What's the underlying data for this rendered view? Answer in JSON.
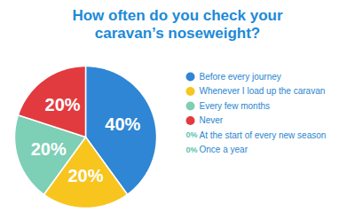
{
  "chart_data": {
    "type": "pie",
    "title": "How often do you check your caravan’s noseweight?",
    "categories": [
      "Before every journey",
      "Whenever I load up the caravan",
      "Every few months",
      "Never",
      "At the start of every new season",
      "Once a year"
    ],
    "values": [
      40,
      20,
      20,
      20,
      0,
      0
    ],
    "value_labels": [
      "40%",
      "20%",
      "20%",
      "20%",
      "0%",
      "0%"
    ],
    "colors": [
      "#2e86d4",
      "#f7c51e",
      "#7dcfb6",
      "#e23b3f",
      "#5cc0b0",
      "#5cc0b0"
    ],
    "data_labels": true,
    "legend": "right"
  }
}
